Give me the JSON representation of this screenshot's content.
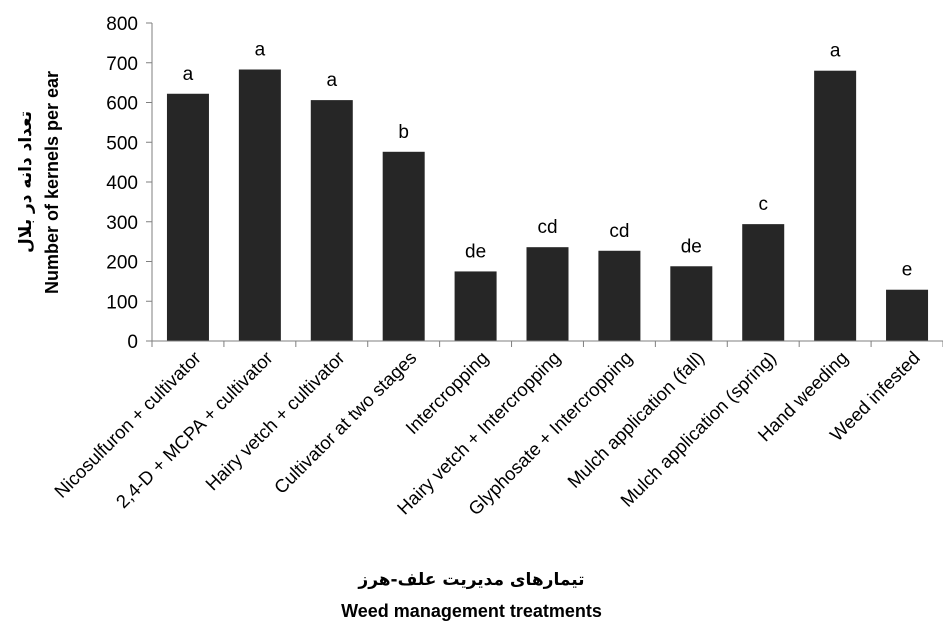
{
  "chart_data": {
    "type": "bar",
    "categories": [
      "Nicosulfuron + cultivator",
      "2,4-D + MCPA + cultivator",
      "Hairy vetch + cultivator",
      "Cultivator at two stages",
      "Intercropping",
      "Hairy vetch + Intercropping",
      "Glyphosate + Intercropping",
      "Mulch application (fall)",
      "Mulch application (spring)",
      "Hand weeding",
      "Weed infested"
    ],
    "values": [
      622,
      683,
      606,
      476,
      175,
      236,
      227,
      188,
      294,
      680,
      129
    ],
    "letters": [
      "a",
      "a",
      "a",
      "b",
      "de",
      "cd",
      "cd",
      "de",
      "c",
      "a",
      "e"
    ],
    "ylabel_fa": "تعداد دانه در بلال",
    "ylabel": "Number of kernels per ear",
    "xlabel_fa": "تیمارهای مدیریت علف-هرز",
    "xlabel": "Weed management treatments",
    "ylim": [
      0,
      800
    ],
    "yticks": [
      0,
      100,
      200,
      300,
      400,
      500,
      600,
      700,
      800
    ],
    "grid": false,
    "bar_color": "#262626"
  }
}
